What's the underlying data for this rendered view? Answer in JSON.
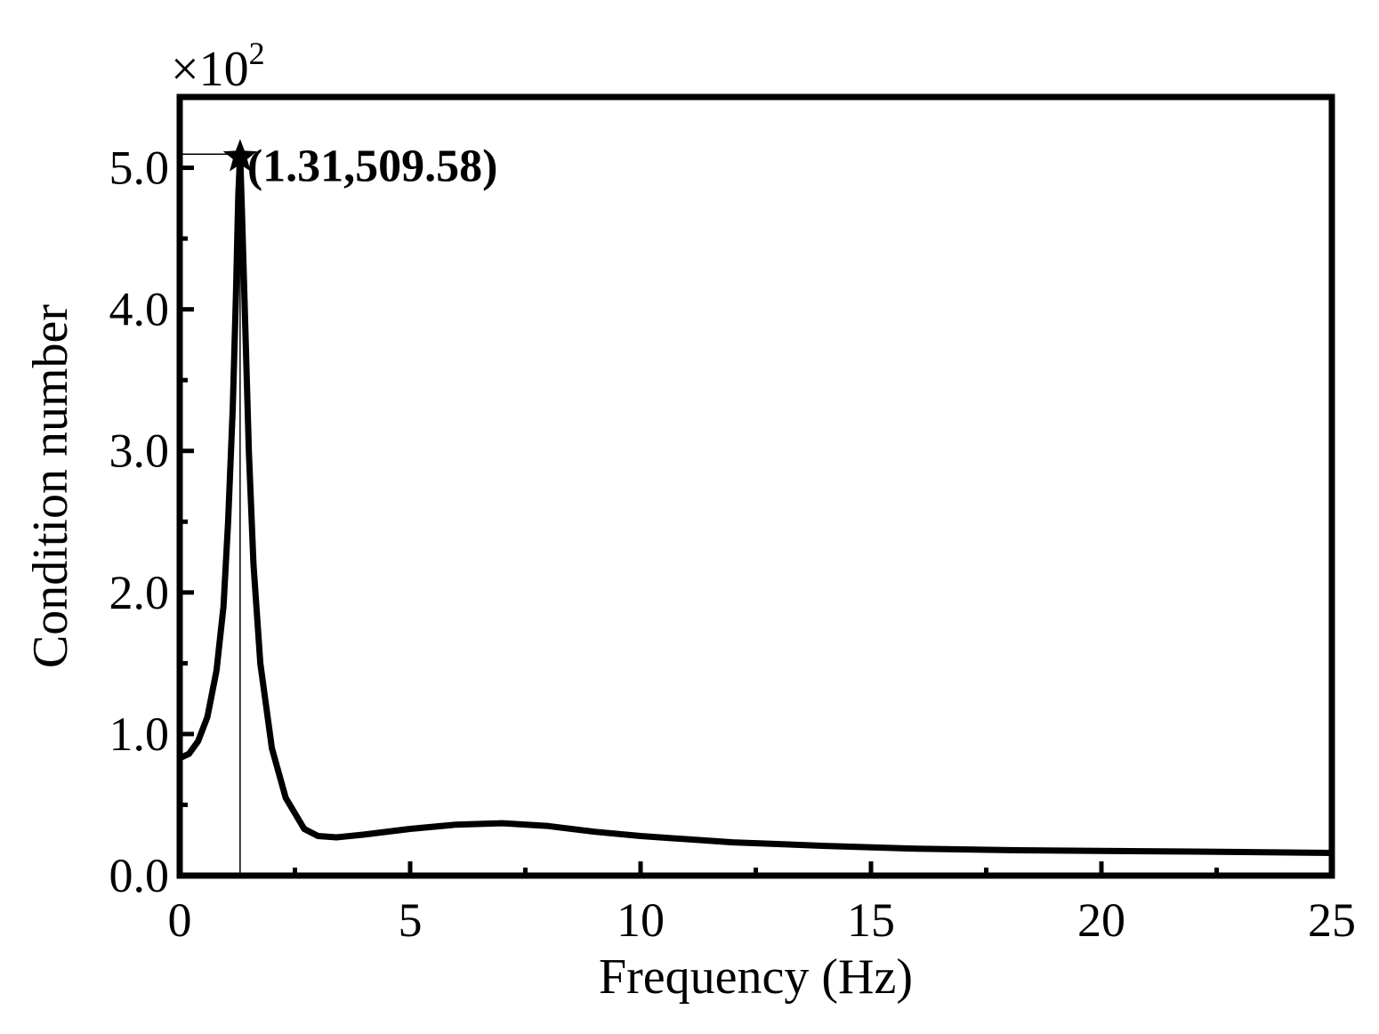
{
  "chart_data": {
    "type": "line",
    "title": "",
    "xlabel": "Frequency (Hz)",
    "ylabel": "Condition number",
    "y_multiplier_base": "×10",
    "y_multiplier_exponent": "2",
    "xlim": [
      0,
      25
    ],
    "ylim": [
      0,
      5.5
    ],
    "x_major_ticks": [
      0,
      5,
      10,
      15,
      20,
      25
    ],
    "x_tick_labels": [
      "0",
      "5",
      "10",
      "15",
      "20",
      "25"
    ],
    "x_minor_ticks": [
      2.5,
      7.5,
      12.5,
      17.5,
      22.5
    ],
    "y_major_ticks": [
      0,
      1,
      2,
      3,
      4,
      5
    ],
    "y_tick_labels": [
      "0.0",
      "1.0",
      "2.0",
      "3.0",
      "4.0",
      "5.0"
    ],
    "y_minor_ticks": [
      0.5,
      1.5,
      2.5,
      3.5,
      4.5
    ],
    "grid": false,
    "series": [
      {
        "x": [
          0,
          0.2,
          0.4,
          0.6,
          0.8,
          0.95,
          1.05,
          1.15,
          1.22,
          1.27,
          1.31,
          1.35,
          1.42,
          1.5,
          1.6,
          1.75,
          2.0,
          2.3,
          2.7,
          3.0,
          3.4,
          4.0,
          5.0,
          6.0,
          7.0,
          8.0,
          9.0,
          10.0,
          12.0,
          14.0,
          16.0,
          18.0,
          20.0,
          22.0,
          25.0
        ],
        "y": [
          0.83,
          0.86,
          0.95,
          1.12,
          1.45,
          1.9,
          2.5,
          3.3,
          4.1,
          4.8,
          5.0958,
          4.7,
          3.9,
          3.0,
          2.2,
          1.5,
          0.9,
          0.55,
          0.33,
          0.28,
          0.27,
          0.29,
          0.33,
          0.36,
          0.37,
          0.35,
          0.31,
          0.28,
          0.235,
          0.21,
          0.19,
          0.18,
          0.175,
          0.17,
          0.16
        ]
      }
    ],
    "peak": {
      "x": 1.31,
      "y": 5.0958,
      "label": "(1.31,509.58)"
    }
  }
}
